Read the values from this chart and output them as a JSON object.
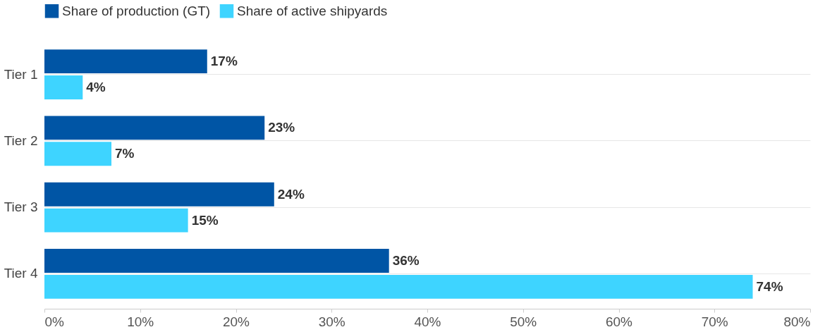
{
  "chart_data": {
    "type": "bar",
    "orientation": "horizontal",
    "categories": [
      "Tier 1",
      "Tier 2",
      "Tier 3",
      "Tier 4"
    ],
    "series": [
      {
        "name": "Share of production (GT)",
        "color": "#0055a5",
        "values": [
          17,
          23,
          24,
          36
        ],
        "value_labels": [
          "17%",
          "23%",
          "24%",
          "36%"
        ]
      },
      {
        "name": "Share of active shipyards",
        "color": "#3ed4ff",
        "values": [
          4,
          7,
          15,
          74
        ],
        "value_labels": [
          "4%",
          "7%",
          "15%",
          "74%"
        ]
      }
    ],
    "xlim": [
      0,
      80
    ],
    "xticks": [
      {
        "value": 0,
        "label": "0%"
      },
      {
        "value": 10,
        "label": "10%"
      },
      {
        "value": 20,
        "label": "20%"
      },
      {
        "value": 30,
        "label": "30%"
      },
      {
        "value": 40,
        "label": "40%"
      },
      {
        "value": 50,
        "label": "50%"
      },
      {
        "value": 60,
        "label": "60%"
      },
      {
        "value": 70,
        "label": "70%"
      },
      {
        "value": 80,
        "label": "80%"
      }
    ],
    "grid": "y",
    "legend": "top left"
  }
}
